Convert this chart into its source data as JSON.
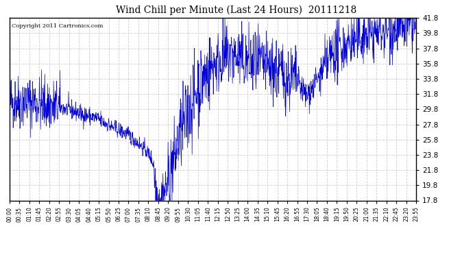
{
  "title": "Wind Chill per Minute (Last 24 Hours)  20111218",
  "copyright_text": "Copyright 2011 Cartronics.com",
  "line_color": "#0000dd",
  "bg_color": "#ffffff",
  "grid_color": "#cccccc",
  "ylim": [
    17.8,
    41.8
  ],
  "yticks": [
    17.8,
    19.8,
    21.8,
    23.8,
    25.8,
    27.8,
    29.8,
    31.8,
    33.8,
    35.8,
    37.8,
    39.8,
    41.8
  ],
  "xtick_labels": [
    "00:00",
    "00:35",
    "01:10",
    "01:45",
    "02:20",
    "02:55",
    "03:30",
    "04:05",
    "04:40",
    "05:15",
    "05:50",
    "06:25",
    "07:00",
    "07:35",
    "08:10",
    "08:45",
    "09:20",
    "09:55",
    "10:30",
    "11:05",
    "11:40",
    "12:15",
    "12:50",
    "13:25",
    "14:00",
    "14:35",
    "15:10",
    "15:45",
    "16:20",
    "16:55",
    "17:30",
    "18:05",
    "18:40",
    "19:15",
    "19:50",
    "20:25",
    "21:00",
    "21:35",
    "22:10",
    "22:45",
    "23:20",
    "23:55"
  ],
  "total_minutes": 1440,
  "seed": 42,
  "base_curve_segments": {
    "00:00": 30.8,
    "01:30": 30.8,
    "02:30": 30.2,
    "03:30": 29.8,
    "04:30": 29.0,
    "05:15": 28.5,
    "06:00": 27.5,
    "06:30": 27.0,
    "07:00": 26.5,
    "07:30": 25.5,
    "08:00": 24.5,
    "08:20": 23.5,
    "08:30": 22.5,
    "08:35": 20.5,
    "08:40": 18.5,
    "08:50": 18.0,
    "09:00": 18.2,
    "09:15": 19.5,
    "09:30": 21.5,
    "09:45": 23.5,
    "10:00": 26.0,
    "10:30": 29.0,
    "11:00": 32.0,
    "11:30": 34.0,
    "12:00": 35.5,
    "12:30": 36.5,
    "13:00": 37.0,
    "13:30": 36.5,
    "14:00": 36.0,
    "14:30": 35.5,
    "15:00": 35.5,
    "15:30": 35.0,
    "16:00": 34.5,
    "16:30": 34.0,
    "17:00": 33.5,
    "17:15": 32.5,
    "17:30": 31.5,
    "18:00": 33.0,
    "18:30": 35.0,
    "19:00": 37.0,
    "20:00": 38.5,
    "21:00": 39.5,
    "22:00": 40.0,
    "23:00": 40.5,
    "23:59": 40.8
  }
}
